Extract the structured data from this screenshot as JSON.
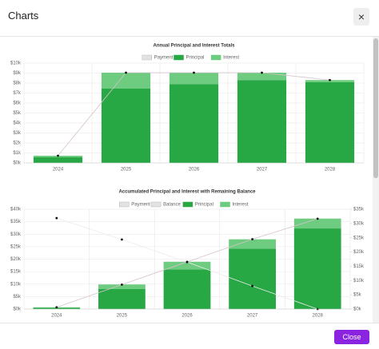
{
  "header": {
    "title": "Charts",
    "close_icon": "×"
  },
  "chart_data": [
    {
      "type": "bar",
      "stacked": true,
      "title": "Annual Principal and Interest Totals",
      "categories": [
        "2024",
        "2025",
        "2026",
        "2027",
        "2028"
      ],
      "series": [
        {
          "name": "Payment",
          "type": "line",
          "color": "#d6c3cc",
          "values": [
            0.72,
            9.04,
            9.04,
            9.04,
            8.3
          ]
        },
        {
          "name": "Principal",
          "type": "bar",
          "color": "#28a745",
          "values": [
            0.56,
            7.44,
            7.9,
            8.3,
            8.1
          ]
        },
        {
          "name": "Interest",
          "type": "bar",
          "color": "#6dcc7f",
          "values": [
            0.16,
            1.6,
            1.14,
            0.74,
            0.2
          ]
        }
      ],
      "ylim": [
        0,
        10
      ],
      "yticks": [
        {
          "value": 0,
          "label": "$0k"
        },
        {
          "value": 1,
          "label": "$1k"
        },
        {
          "value": 2,
          "label": "$2k"
        },
        {
          "value": 3,
          "label": "$3k"
        },
        {
          "value": 4,
          "label": "$4k"
        },
        {
          "value": 5,
          "label": "$5k"
        },
        {
          "value": 6,
          "label": "$6k"
        },
        {
          "value": 7,
          "label": "$7k"
        },
        {
          "value": 8,
          "label": "$8k"
        },
        {
          "value": 9,
          "label": "$9k"
        },
        {
          "value": 10,
          "label": "$10k"
        }
      ],
      "grid": true
    },
    {
      "type": "bar",
      "stacked": true,
      "title": "Accumulated Principal and Interest with Remaining Balance",
      "categories": [
        "2024",
        "2025",
        "2026",
        "2027",
        "2028"
      ],
      "series": [
        {
          "name": "Payment",
          "type": "line",
          "color": "#d6c3cc",
          "values": [
            0.72,
            9.8,
            18.9,
            28,
            36.2
          ]
        },
        {
          "name": "Balance",
          "type": "line",
          "axis": "y2",
          "color": "#ebebeb",
          "values": [
            31.9,
            24.4,
            16.5,
            8.1,
            0
          ]
        },
        {
          "name": "Principal",
          "type": "bar",
          "color": "#28a745",
          "values": [
            0.56,
            8,
            15.9,
            24.2,
            32.3
          ]
        },
        {
          "name": "Interest",
          "type": "bar",
          "color": "#6dcc7f",
          "values": [
            0.16,
            1.86,
            3.06,
            3.76,
            3.96
          ]
        }
      ],
      "ylim": [
        0,
        40
      ],
      "yticks": [
        {
          "value": 0,
          "label": "$0k"
        },
        {
          "value": 5,
          "label": "$5k"
        },
        {
          "value": 10,
          "label": "$10k"
        },
        {
          "value": 15,
          "label": "$15k"
        },
        {
          "value": 20,
          "label": "$20k"
        },
        {
          "value": 25,
          "label": "$25k"
        },
        {
          "value": 30,
          "label": "$30k"
        },
        {
          "value": 35,
          "label": "$35k"
        },
        {
          "value": 40,
          "label": "$40k"
        }
      ],
      "y2lim": [
        0,
        35
      ],
      "y2ticks": [
        {
          "value": 0,
          "label": "$0k"
        },
        {
          "value": 5,
          "label": "$5k"
        },
        {
          "value": 10,
          "label": "$10k"
        },
        {
          "value": 15,
          "label": "$15k"
        },
        {
          "value": 20,
          "label": "$20k"
        },
        {
          "value": 25,
          "label": "$25k"
        },
        {
          "value": 30,
          "label": "$30k"
        },
        {
          "value": 35,
          "label": "$35k"
        }
      ],
      "grid": true
    }
  ],
  "footer": {
    "button": "Close"
  }
}
